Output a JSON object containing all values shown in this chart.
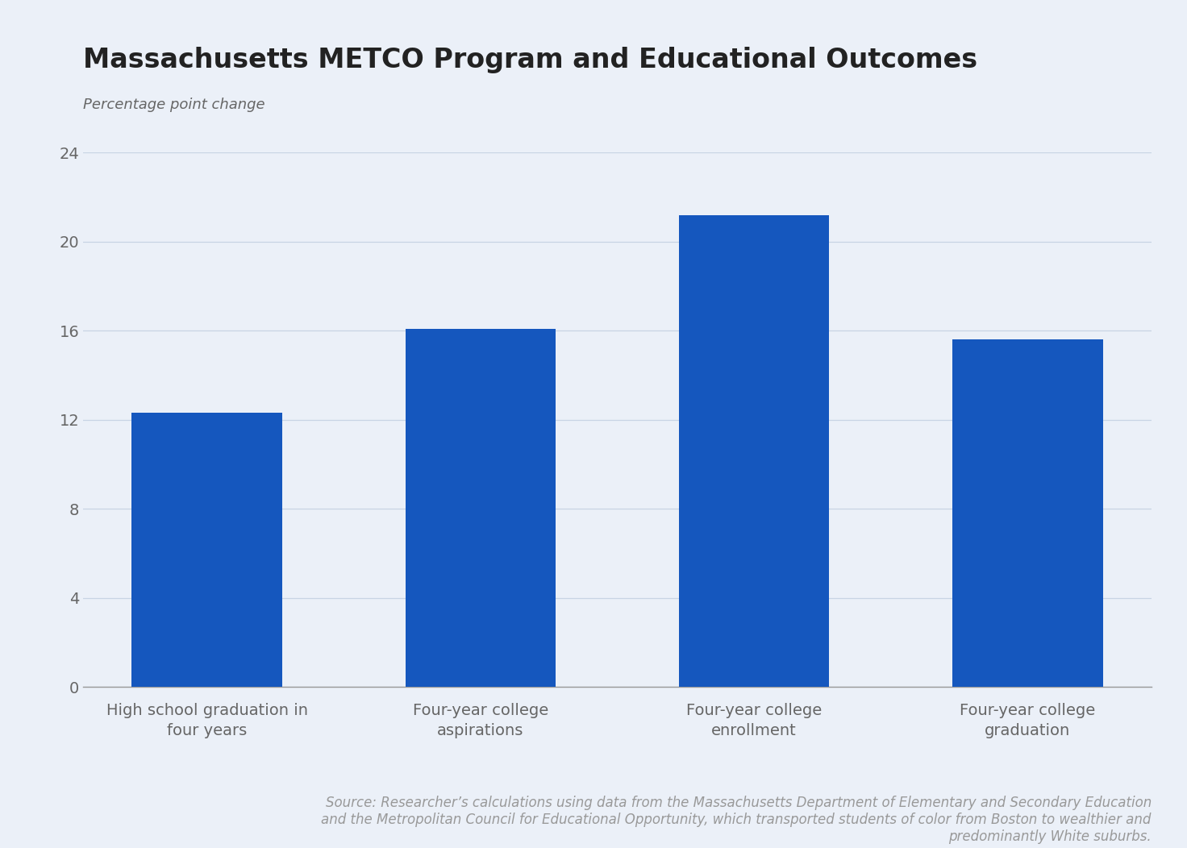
{
  "title": "Massachusetts METCO Program and Educational Outcomes",
  "subtitle": "Percentage point change",
  "categories": [
    "High school graduation in\nfour years",
    "Four-year college\naspirations",
    "Four-year college\nenrollment",
    "Four-year college\ngraduation"
  ],
  "values": [
    12.3,
    16.1,
    21.2,
    15.6
  ],
  "bar_color": "#1557BE",
  "background_color": "#EBF0F8",
  "ylim": [
    0,
    24
  ],
  "yticks": [
    0,
    4,
    8,
    12,
    16,
    20,
    24
  ],
  "grid_color": "#C8D4E4",
  "title_fontsize": 24,
  "subtitle_fontsize": 13,
  "tick_fontsize": 14,
  "xlabel_fontsize": 14,
  "source_text": "Source: Researcher’s calculations using data from the Massachusetts Department of Elementary and Secondary Education\nand the Metropolitan Council for Educational Opportunity, which transported students of color from Boston to wealthier and\npredominantly White suburbs.",
  "source_fontsize": 12,
  "source_color": "#999999",
  "tick_color": "#666666",
  "axis_color": "#999999",
  "title_color": "#222222"
}
